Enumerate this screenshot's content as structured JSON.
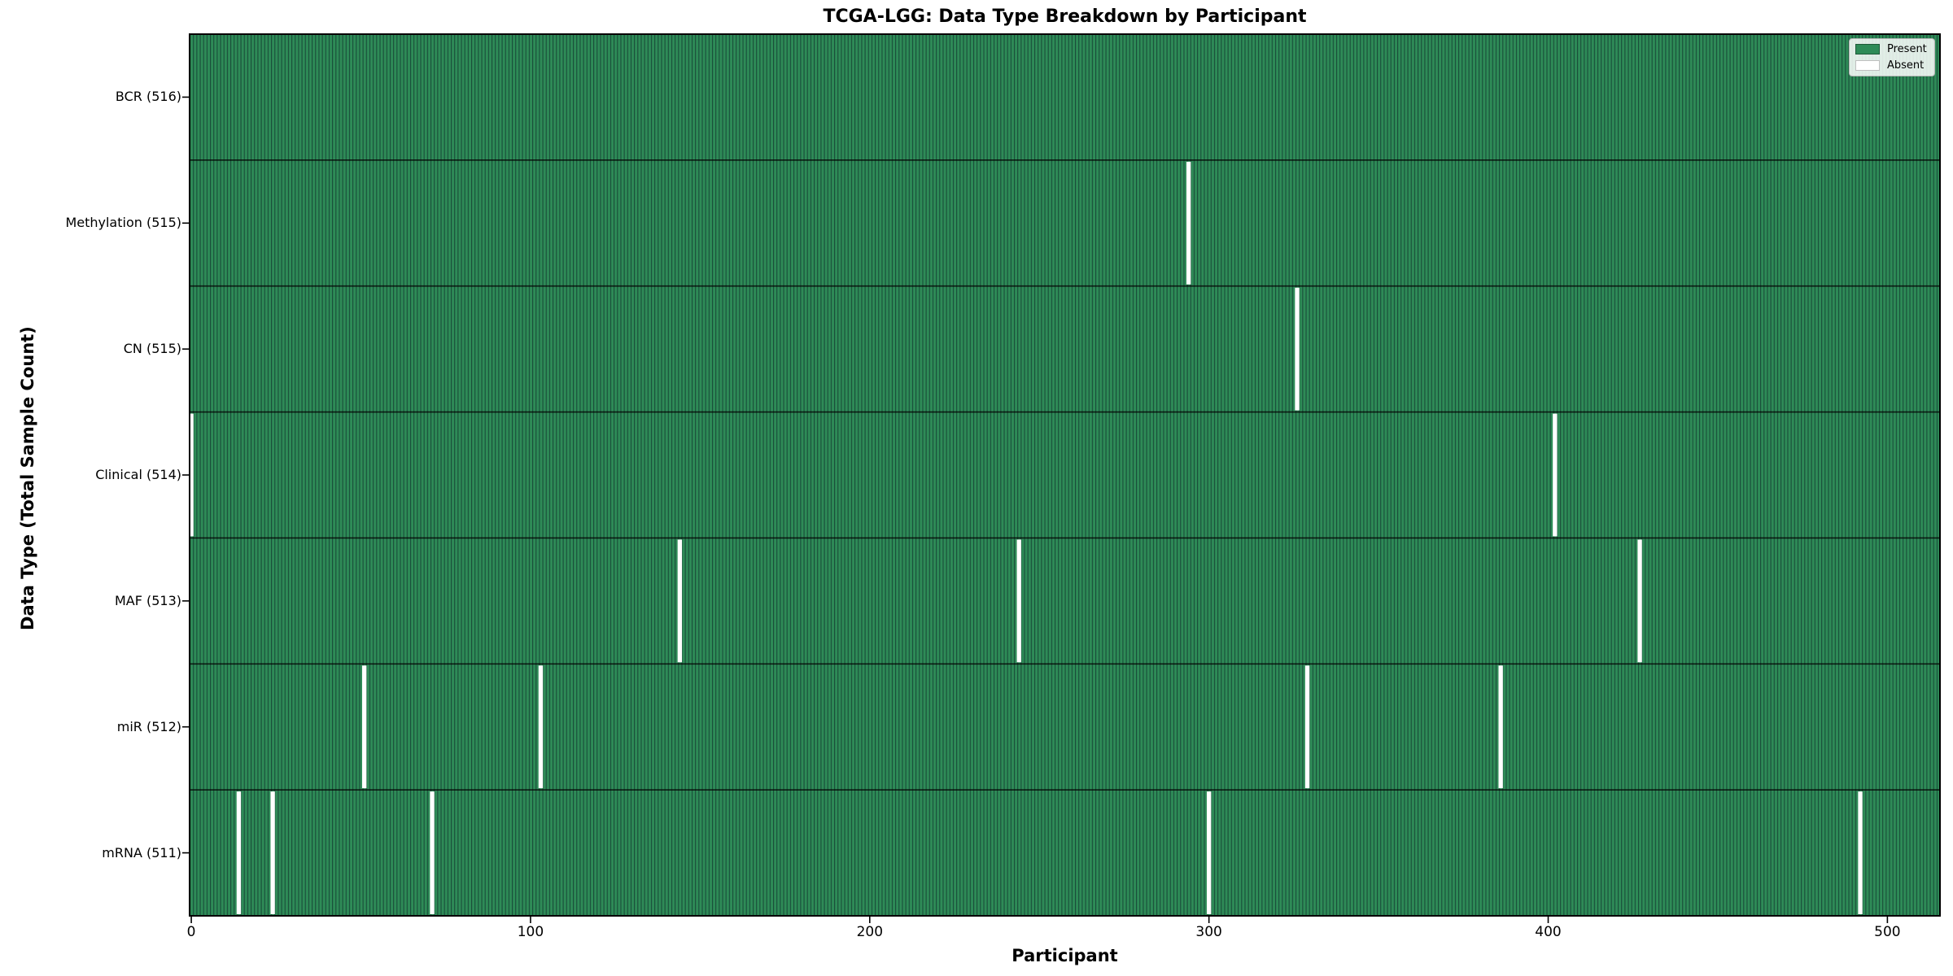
{
  "figure": {
    "title": "TCGA-LGG: Data Type Breakdown by Participant",
    "xlabel": "Participant",
    "ylabel": "Data Type (Total Sample Count)",
    "x_ticks": [
      0,
      100,
      200,
      300,
      400,
      500
    ],
    "legend": {
      "present_label": "Present",
      "absent_label": "Absent"
    },
    "colors": {
      "present": "#2E8B57",
      "absent": "#FFFFFF",
      "bar_edge": "rgba(0,0,20,0.45)",
      "row_boundary": "rgba(0,0,0,0.8)",
      "spine": "#000000"
    }
  },
  "chart_data": {
    "type": "heatmap",
    "title": "TCGA-LGG: Data Type Breakdown by Participant",
    "xlabel": "Participant",
    "ylabel": "Data Type (Total Sample Count)",
    "legend": [
      "Present",
      "Absent"
    ],
    "legend_position": "upper right",
    "x_range": [
      0,
      515
    ],
    "n_participants": 516,
    "x_ticks": [
      0,
      100,
      200,
      300,
      400,
      500
    ],
    "rows": [
      {
        "label": "BCR (516)",
        "data_type": "BCR",
        "present_count": 516,
        "absent_participants": []
      },
      {
        "label": "Methylation (515)",
        "data_type": "Methylation",
        "present_count": 515,
        "absent_participants": [
          294
        ]
      },
      {
        "label": "CN (515)",
        "data_type": "CN",
        "present_count": 515,
        "absent_participants": [
          326
        ]
      },
      {
        "label": "Clinical (514)",
        "data_type": "Clinical",
        "present_count": 514,
        "absent_participants": [
          0,
          402
        ]
      },
      {
        "label": "MAF (513)",
        "data_type": "MAF",
        "present_count": 513,
        "absent_participants": [
          144,
          244,
          427
        ]
      },
      {
        "label": "miR (512)",
        "data_type": "miR",
        "present_count": 512,
        "absent_participants": [
          51,
          103,
          329,
          386
        ]
      },
      {
        "label": "mRNA (511)",
        "data_type": "mRNA",
        "present_count": 511,
        "absent_participants": [
          14,
          24,
          71,
          300,
          492
        ]
      }
    ]
  }
}
